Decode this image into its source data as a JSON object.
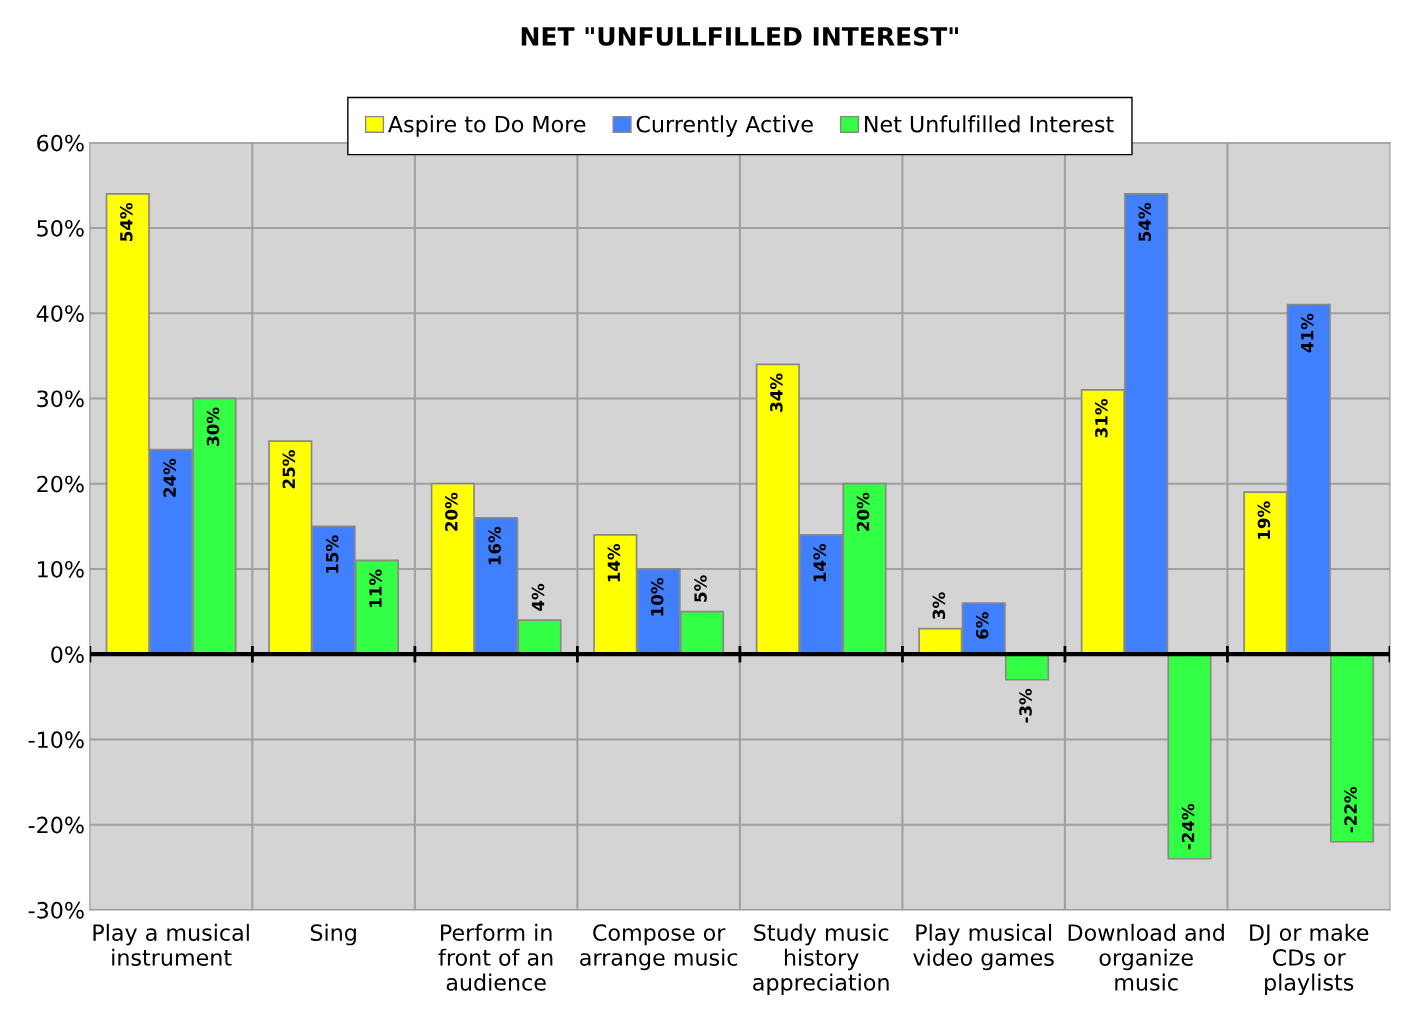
{
  "chart_data": {
    "type": "bar",
    "title": "NET \"UNFULLFILLED INTEREST\"",
    "categories": [
      "Play a musical instrument",
      "Sing",
      "Perform in front of an audience",
      "Compose or arrange music",
      "Study music history appreciation",
      "Play musical video games",
      "Download and organize music",
      "DJ or make CDs or playlists"
    ],
    "series": [
      {
        "name": "Aspire to Do More",
        "color": "#ffff00",
        "values": [
          54,
          25,
          20,
          14,
          34,
          3,
          31,
          19
        ],
        "value_labels": [
          "54%",
          "25%",
          "20%",
          "14%",
          "34%",
          "3%",
          "31%",
          "19%"
        ]
      },
      {
        "name": "Currently Active",
        "color": "#4080ff",
        "values": [
          24,
          15,
          16,
          10,
          14,
          6,
          54,
          41
        ],
        "value_labels": [
          "24%",
          "15%",
          "16%",
          "10%",
          "14%",
          "6%",
          "54%",
          "41%"
        ]
      },
      {
        "name": "Net Unfulfilled Interest",
        "color": "#33ff44",
        "values": [
          30,
          11,
          4,
          5,
          20,
          -3,
          -24,
          -22
        ],
        "value_labels": [
          "30%",
          "11%",
          "4%",
          "5%",
          "20%",
          "-3%",
          "-24%",
          "-22%"
        ]
      }
    ],
    "ylim": [
      -30,
      60
    ],
    "yticks": [
      {
        "value": -30,
        "label": "-30%"
      },
      {
        "value": -20,
        "label": "-20%"
      },
      {
        "value": -10,
        "label": "-10%"
      },
      {
        "value": 0,
        "label": "0%"
      },
      {
        "value": 10,
        "label": "10%"
      },
      {
        "value": 20,
        "label": "20%"
      },
      {
        "value": 30,
        "label": "30%"
      },
      {
        "value": 40,
        "label": "40%"
      },
      {
        "value": 50,
        "label": "50%"
      },
      {
        "value": 60,
        "label": "60%"
      }
    ],
    "grid": true,
    "legend": "top"
  }
}
